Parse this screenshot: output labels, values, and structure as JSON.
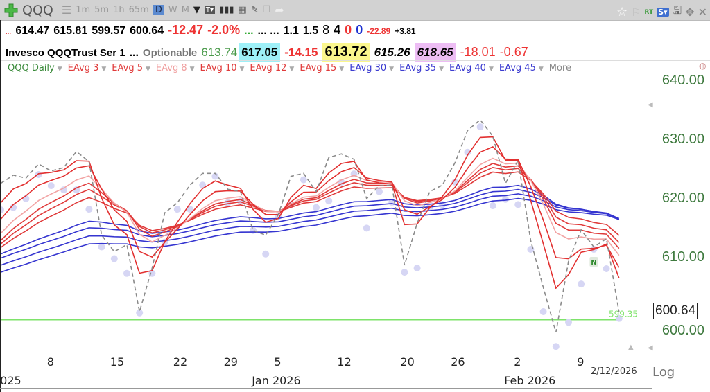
{
  "toolbar": {
    "symbol": "QQQ",
    "timeframes": [
      "1m",
      "5m",
      "1h",
      "65m",
      "D",
      "W",
      "M"
    ],
    "active_timeframe": "D",
    "right": {
      "rt": "RT",
      "s": "S▾"
    }
  },
  "quote_row1": {
    "dots_red": "...",
    "open": "614.47",
    "high": "615.81",
    "low": "599.57",
    "close": "600.64",
    "change": "-12.47",
    "change_pct": "-2.0%",
    "dots_green": "...",
    "dots_black": "... ...",
    "v1": "1.1",
    "v2": "1.5",
    "n1": "8",
    "n2": "4",
    "n3": "0",
    "n4": "0",
    "d1": "-22.89",
    "d2": "+3.81"
  },
  "quote_row2": {
    "name": "Invesco QQQTrust Ser 1",
    "dots": "...",
    "optionable": "Optionable",
    "p1": "613.74",
    "p2": "617.05",
    "p3": "-14.15",
    "p4": "613.72",
    "p5": "615.26",
    "p6": "618.65",
    "p7": "-18.01",
    "p8": "-0.67",
    "colors": {
      "cyan": "#9ef0f8",
      "yellow": "#fbf78d",
      "lavender": "#edbdf4"
    }
  },
  "legend": {
    "main": "QQQ Daily",
    "items": [
      {
        "label": "EAvg 3",
        "period": 3,
        "color": "#e23030",
        "seed": 619.2
      },
      {
        "label": "EAvg 5",
        "period": 5,
        "color": "#e23030",
        "seed": 616.4
      },
      {
        "label": "EAvg 8",
        "period": 8,
        "color": "#f2a4a4",
        "seed": 614.0
      },
      {
        "label": "EAvg 10",
        "period": 10,
        "color": "#e03a3a",
        "seed": 612.8
      },
      {
        "label": "EAvg 12",
        "period": 12,
        "color": "#e03a3a",
        "seed": 612.2
      },
      {
        "label": "EAvg 15",
        "period": 15,
        "color": "#e03a3a",
        "seed": 611.6
      },
      {
        "label": "EAvg 30",
        "period": 30,
        "color": "#3535d0",
        "seed": 610.5
      },
      {
        "label": "EAvg 35",
        "period": 35,
        "color": "#3535d0",
        "seed": 609.8
      },
      {
        "label": "EAvg 40",
        "period": 40,
        "color": "#3535d0",
        "seed": 608.6
      },
      {
        "label": "EAvg 45",
        "period": 45,
        "color": "#3535d0",
        "seed": 607.4
      }
    ],
    "more": "More"
  },
  "chart_data": {
    "type": "line",
    "ylim": [
      590,
      645
    ],
    "y_ticks": [
      "640.00",
      "630.00",
      "620.00",
      "610.00",
      "600.00"
    ],
    "x_tick_labels": [
      {
        "label": "8",
        "index": 4
      },
      {
        "label": "15",
        "index": 9
      },
      {
        "label": "22",
        "index": 14
      },
      {
        "label": "29",
        "index": 18
      },
      {
        "label": "5",
        "index": 22
      },
      {
        "label": "12",
        "index": 27
      },
      {
        "label": "20",
        "index": 32
      },
      {
        "label": "26",
        "index": 36
      },
      {
        "label": "2",
        "index": 41
      },
      {
        "label": "9",
        "index": 46
      }
    ],
    "month_labels": [
      {
        "label": "2025",
        "index": 0
      },
      {
        "label": "Jan 2026",
        "index": 21
      },
      {
        "label": "Feb 2026",
        "index": 41
      }
    ],
    "last_date": "2/12/2026",
    "last_price": "600.64",
    "support_line": {
      "value": 599.35,
      "label": "599.35",
      "color": "#7ee36a"
    },
    "news_marker": {
      "label": "N",
      "index": 47
    },
    "scale_label": "Log",
    "close": [
      622.5,
      623.9,
      623.4,
      625.8,
      624.6,
      625.2,
      627.9,
      626.2,
      613.7,
      610.9,
      612.1,
      600.7,
      608.1,
      617.5,
      619.2,
      622.2,
      624.2,
      624.2,
      621.5,
      621.1,
      614.5,
      613.7,
      617.2,
      623.7,
      624.2,
      621.1,
      626.9,
      627.5,
      626.6,
      619.9,
      622.1,
      622.2,
      608.6,
      615.7,
      621.1,
      622.2,
      626.0,
      631.5,
      633.3,
      630.5,
      622.5,
      626.4,
      612.8,
      604.8,
      597.2,
      609.3,
      614.6,
      611.7,
      613.1,
      600.64
    ],
    "low": [
      618.0,
      618.4,
      619.9,
      624.0,
      622.1,
      621.4,
      621.4,
      618.1,
      611.7,
      609.7,
      607.2,
      600.5,
      607.2,
      612.5,
      618.1,
      618.1,
      622.2,
      623.7,
      619.2,
      619.5,
      614.5,
      610.5,
      616.9,
      618.9,
      623.1,
      618.4,
      619.5,
      622.7,
      624.1,
      614.9,
      621.1,
      619.3,
      607.4,
      608.1,
      618.4,
      618.9,
      622.7,
      627.8,
      632.1,
      618.7,
      619.8,
      618.9,
      611.3,
      600.7,
      594.8,
      598.9,
      605.4,
      611.3,
      608.0,
      599.57
    ]
  }
}
